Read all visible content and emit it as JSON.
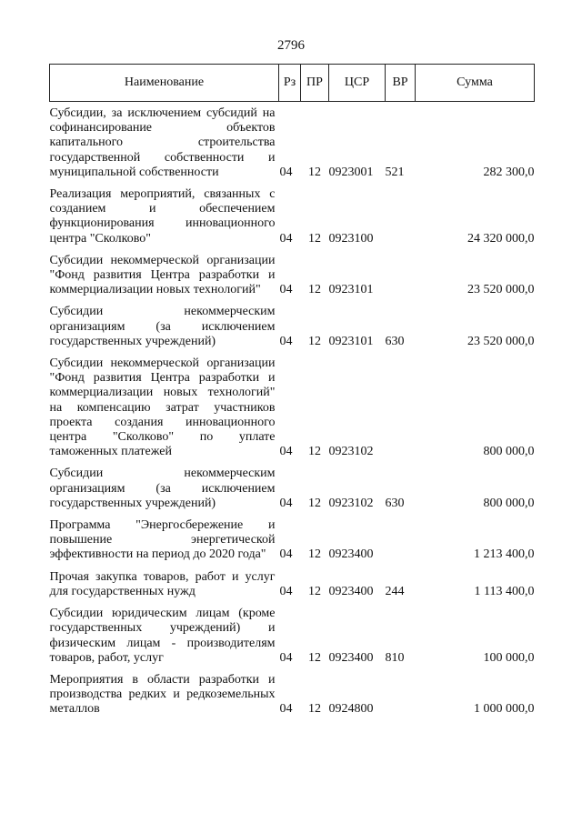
{
  "page_number": "2796",
  "headers": {
    "name": "Наименование",
    "rz": "Рз",
    "pr": "ПР",
    "csr": "ЦСР",
    "vr": "ВР",
    "sum": "Сумма"
  },
  "rows": [
    {
      "name": "Субсидии, за исключением субсидий на софинансирование объектов капитального строительства государственной собственности и муниципальной собственности",
      "rz": "04",
      "pr": "12",
      "csr": "0923001",
      "vr": "521",
      "sum": "282 300,0"
    },
    {
      "name": "Реализация мероприятий, связанных с созданием и обеспечением функционирования инновационного центра \"Сколково\"",
      "rz": "04",
      "pr": "12",
      "csr": "0923100",
      "vr": "",
      "sum": "24 320 000,0"
    },
    {
      "name": "Субсидии некоммерческой организации \"Фонд развития Центра разработки и коммерциализации новых технологий\"",
      "rz": "04",
      "pr": "12",
      "csr": "0923101",
      "vr": "",
      "sum": "23 520 000,0"
    },
    {
      "name": "Субсидии некоммерческим организациям (за исключением государственных учреждений)",
      "rz": "04",
      "pr": "12",
      "csr": "0923101",
      "vr": "630",
      "sum": "23 520 000,0"
    },
    {
      "name": "Субсидии некоммерческой организации \"Фонд развития Центра разработки и коммерциализации новых технологий\" на компенсацию затрат участников проекта создания инновационного центра \"Сколково\" по уплате таможенных платежей",
      "rz": "04",
      "pr": "12",
      "csr": "0923102",
      "vr": "",
      "sum": "800 000,0"
    },
    {
      "name": "Субсидии некоммерческим организациям (за исключением государственных учреждений)",
      "rz": "04",
      "pr": "12",
      "csr": "0923102",
      "vr": "630",
      "sum": "800 000,0"
    },
    {
      "name": "Программа \"Энергосбережение и повышение энергетической эффективности на период до 2020 года\"",
      "rz": "04",
      "pr": "12",
      "csr": "0923400",
      "vr": "",
      "sum": "1 213 400,0"
    },
    {
      "name": "Прочая закупка товаров, работ и услуг для государственных нужд",
      "rz": "04",
      "pr": "12",
      "csr": "0923400",
      "vr": "244",
      "sum": "1 113 400,0"
    },
    {
      "name": "Субсидии юридическим лицам (кроме государственных учреждений) и физическим лицам - производителям товаров, работ, услуг",
      "rz": "04",
      "pr": "12",
      "csr": "0923400",
      "vr": "810",
      "sum": "100 000,0"
    },
    {
      "name": "Мероприятия в области разработки и производства редких и редкоземельных металлов",
      "rz": "04",
      "pr": "12",
      "csr": "0924800",
      "vr": "",
      "sum": "1 000 000,0"
    }
  ]
}
